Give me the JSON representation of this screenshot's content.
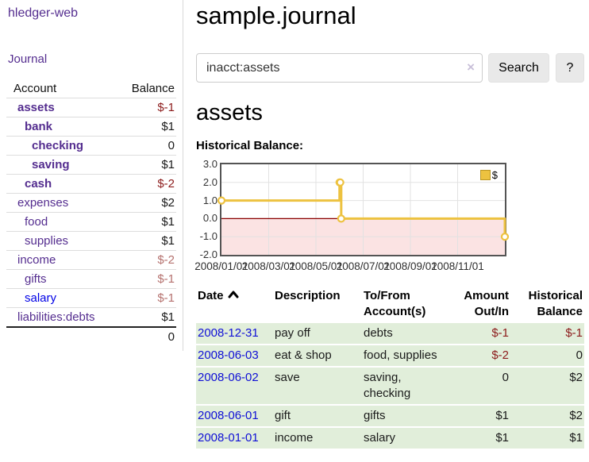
{
  "app": {
    "title": "hledger-web"
  },
  "nav": {
    "journal": "Journal"
  },
  "sidebar": {
    "columns": {
      "account": "Account",
      "balance": "Balance"
    },
    "accounts": [
      {
        "name": "assets",
        "indent": 0,
        "balance": "$-1",
        "bold": true,
        "color": "purple"
      },
      {
        "name": "bank",
        "indent": 1,
        "balance": "$1",
        "bold": true,
        "color": "purple"
      },
      {
        "name": "checking",
        "indent": 2,
        "balance": "0",
        "bold": true,
        "color": "purple"
      },
      {
        "name": "saving",
        "indent": 2,
        "balance": "$1",
        "bold": true,
        "color": "purple"
      },
      {
        "name": "cash",
        "indent": 1,
        "balance": "$-2",
        "bold": true,
        "color": "purple"
      },
      {
        "name": "expenses",
        "indent": 0,
        "balance": "$2",
        "bold": false,
        "color": "purple"
      },
      {
        "name": "food",
        "indent": 1,
        "balance": "$1",
        "bold": false,
        "color": "purple"
      },
      {
        "name": "supplies",
        "indent": 1,
        "balance": "$1",
        "bold": false,
        "color": "purple"
      },
      {
        "name": "income",
        "indent": 0,
        "balance": "$-2",
        "bold": false,
        "color": "purple"
      },
      {
        "name": "gifts",
        "indent": 1,
        "balance": "$-1",
        "bold": false,
        "color": "purple"
      },
      {
        "name": "salary",
        "indent": 1,
        "balance": "$-1",
        "bold": false,
        "color": "blue"
      },
      {
        "name": "liabilities:debts",
        "indent": 0,
        "balance": "$1",
        "bold": false,
        "color": "purple"
      }
    ],
    "total": "0"
  },
  "main": {
    "title": "sample.journal",
    "search": {
      "value": "inacct:assets",
      "clear_icon": "×",
      "search_label": "Search",
      "help_label": "?"
    },
    "account_title": "assets",
    "chart_title": "Historical Balance:",
    "register": {
      "columns": [
        "Date",
        "Description",
        "To/From Account(s)",
        "Amount Out/In",
        "Historical Balance"
      ],
      "rows": [
        {
          "date": "2008-12-31",
          "description": "pay off",
          "accounts": "debts",
          "amount": "$-1",
          "balance": "$-1"
        },
        {
          "date": "2008-06-03",
          "description": "eat & shop",
          "accounts": "food, supplies",
          "amount": "$-2",
          "balance": "0"
        },
        {
          "date": "2008-06-02",
          "description": "save",
          "accounts": "saving,\nchecking",
          "amount": "0",
          "balance": "$2"
        },
        {
          "date": "2008-06-01",
          "description": "gift",
          "accounts": "gifts",
          "amount": "$1",
          "balance": "$2"
        },
        {
          "date": "2008-01-01",
          "description": "income",
          "accounts": "salary",
          "amount": "$1",
          "balance": "$1"
        }
      ]
    }
  },
  "chart_data": {
    "type": "line",
    "title": "Historical Balance",
    "step": true,
    "legend": "$",
    "legend_position": "top-right",
    "grid": true,
    "xlim": [
      0,
      12
    ],
    "ylim": [
      -2,
      3
    ],
    "yticks": [
      3.0,
      2.0,
      1.0,
      0.0,
      -1.0,
      -2.0
    ],
    "yticklabels": [
      "3.0",
      "2.0",
      "1.0",
      "0.0",
      "-1.0",
      "-2.0"
    ],
    "xticks": [
      {
        "pos": 0,
        "label": "2008/01/01"
      },
      {
        "pos": 2,
        "label": "2008/03/01"
      },
      {
        "pos": 4,
        "label": "2008/05/01"
      },
      {
        "pos": 6,
        "label": "2008/07/01"
      },
      {
        "pos": 8,
        "label": "2008/09/01"
      },
      {
        "pos": 10,
        "label": "2008/11/01"
      }
    ],
    "series": [
      {
        "name": "$",
        "color": "#edc240",
        "points": [
          {
            "date": "2008-01-01",
            "x": 0,
            "y": 1
          },
          {
            "date": "2008-06-01",
            "x": 5.0,
            "y": 2
          },
          {
            "date": "2008-06-02",
            "x": 5.03,
            "y": 2
          },
          {
            "date": "2008-06-03",
            "x": 5.07,
            "y": 0
          },
          {
            "date": "2008-12-31",
            "x": 12,
            "y": -1
          }
        ]
      }
    ],
    "colors": {
      "line": "#edc240",
      "marker_fill": "#ffffff",
      "negative_region_fill": "#fbe3e3",
      "zero_line": "#8b0000",
      "gridline": "#e2e2e2",
      "plot_border": "#545454"
    }
  }
}
